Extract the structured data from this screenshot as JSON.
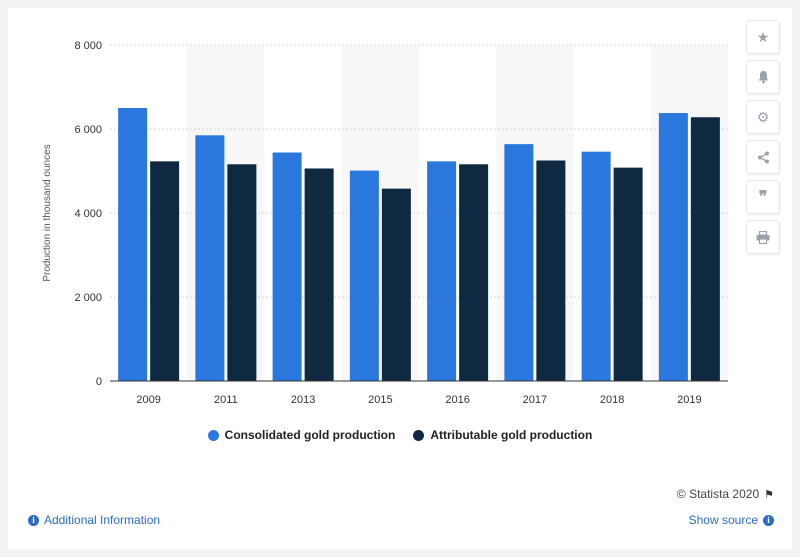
{
  "chart_data": {
    "type": "bar",
    "categories": [
      "2009",
      "2011",
      "2013",
      "2015",
      "2016",
      "2017",
      "2018",
      "2019"
    ],
    "series": [
      {
        "name": "Consolidated gold production",
        "color": "#2a78de",
        "values": [
          6500,
          5850,
          5440,
          5010,
          5230,
          5640,
          5460,
          6380
        ]
      },
      {
        "name": "Attributable gold production",
        "color": "#0f2940",
        "values": [
          5230,
          5160,
          5060,
          4580,
          5160,
          5250,
          5080,
          6280
        ]
      }
    ],
    "ylabel": "Production in thousand ounces",
    "xlabel": "",
    "ylim": [
      0,
      8000
    ],
    "yticks": [
      0,
      2000,
      4000,
      6000,
      8000
    ],
    "ytick_labels": [
      "0",
      "2 000",
      "4 000",
      "6 000",
      "8 000"
    ],
    "grid": true,
    "legend_position": "bottom"
  },
  "footer": {
    "credit": "© Statista 2020",
    "additional_info": "Additional Information",
    "show_source": "Show source"
  },
  "sidebar_icons": [
    "star-icon",
    "bell-icon",
    "gear-icon",
    "share-icon",
    "quote-icon",
    "print-icon"
  ]
}
